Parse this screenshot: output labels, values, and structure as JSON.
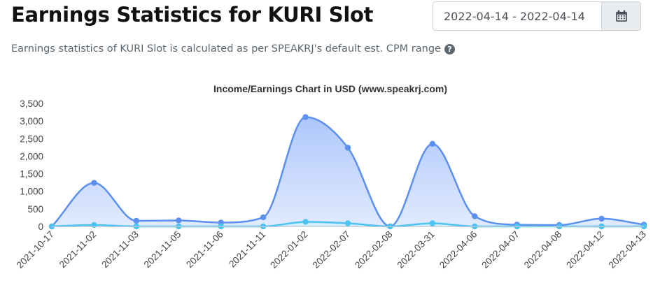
{
  "header": {
    "title": "Earnings Statistics for KURI Slot",
    "subtitle": "Earnings statistics of KURI Slot is calculated as per SPEAKRJ's default est. CPM range",
    "help_icon": "question-circle-icon"
  },
  "date_picker": {
    "value": "2022-04-14 - 2022-04-14",
    "icon": "calendar-icon"
  },
  "chart_data": {
    "type": "area",
    "title": "Income/Earnings Chart in USD (www.speakrj.com)",
    "xlabel": "",
    "ylabel": "",
    "ylim": [
      0,
      3500
    ],
    "yticks": [
      "0",
      "500",
      "1,000",
      "1,500",
      "2,000",
      "2,500",
      "3,000",
      "3,500"
    ],
    "categories": [
      "2021-10-17",
      "2021-11-02",
      "2021-11-03",
      "2021-11-05",
      "2021-11-06",
      "2021-11-11",
      "2022-01-02",
      "2022-02-07",
      "2022-02-08",
      "2022-03-31",
      "2022-04-06",
      "2022-04-07",
      "2022-04-08",
      "2022-04-12",
      "2022-04-13"
    ],
    "series": [
      {
        "values": [
          0,
          1240,
          160,
          170,
          110,
          260,
          3110,
          2240,
          0,
          2350,
          290,
          50,
          40,
          220,
          50
        ],
        "color": "#5b8ff0",
        "fill": "#a9c4fb"
      },
      {
        "values": [
          0,
          40,
          0,
          0,
          0,
          0,
          130,
          90,
          0,
          90,
          0,
          0,
          0,
          0,
          0
        ],
        "color": "#4cc3f2",
        "fill": "#c7ecfb"
      }
    ],
    "grid": false,
    "legend": "none"
  }
}
